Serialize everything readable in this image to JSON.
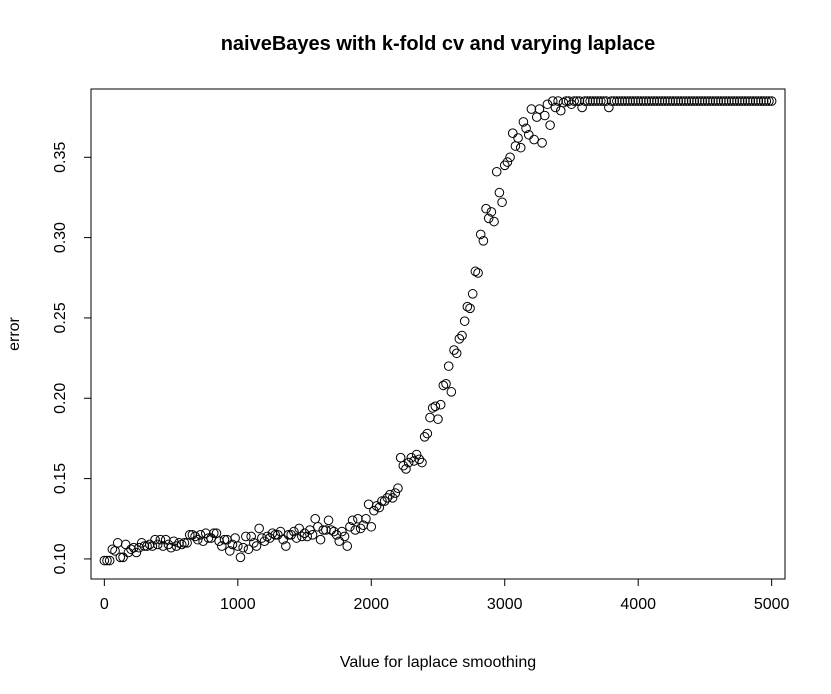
{
  "chart_data": {
    "type": "scatter",
    "title": "naiveBayes with k-fold cv and varying laplace",
    "xlabel": "Value for laplace smoothing",
    "ylabel": "error",
    "xlim": [
      -100,
      5100
    ],
    "ylim": [
      0.0875,
      0.3925
    ],
    "xticks": [
      0,
      1000,
      2000,
      3000,
      4000,
      5000
    ],
    "xtick_labels": [
      "0",
      "1000",
      "2000",
      "3000",
      "4000",
      "5000"
    ],
    "yticks": [
      0.1,
      0.15,
      0.2,
      0.25,
      0.3,
      0.35
    ],
    "ytick_labels": [
      "0.10",
      "0.15",
      "0.20",
      "0.25",
      "0.30",
      "0.35"
    ],
    "grid": false,
    "marker": "open-circle",
    "x_start": 0,
    "x_step": 20,
    "values": [
      0.099,
      0.099,
      0.099,
      0.106,
      0.105,
      0.11,
      0.101,
      0.101,
      0.109,
      0.104,
      0.106,
      0.107,
      0.104,
      0.107,
      0.11,
      0.108,
      0.108,
      0.109,
      0.108,
      0.112,
      0.109,
      0.112,
      0.108,
      0.112,
      0.109,
      0.107,
      0.111,
      0.108,
      0.11,
      0.109,
      0.11,
      0.11,
      0.115,
      0.115,
      0.114,
      0.112,
      0.115,
      0.111,
      0.116,
      0.113,
      0.113,
      0.116,
      0.116,
      0.111,
      0.108,
      0.112,
      0.112,
      0.105,
      0.109,
      0.113,
      0.108,
      0.101,
      0.107,
      0.114,
      0.106,
      0.114,
      0.11,
      0.108,
      0.119,
      0.113,
      0.111,
      0.114,
      0.113,
      0.116,
      0.115,
      0.115,
      0.117,
      0.112,
      0.108,
      0.115,
      0.115,
      0.117,
      0.113,
      0.119,
      0.114,
      0.116,
      0.114,
      0.118,
      0.115,
      0.125,
      0.12,
      0.112,
      0.118,
      0.118,
      0.124,
      0.118,
      0.117,
      0.115,
      0.111,
      0.117,
      0.114,
      0.108,
      0.12,
      0.124,
      0.118,
      0.125,
      0.119,
      0.121,
      0.125,
      0.134,
      0.12,
      0.13,
      0.133,
      0.132,
      0.136,
      0.136,
      0.138,
      0.14,
      0.138,
      0.141,
      0.144,
      0.163,
      0.158,
      0.156,
      0.16,
      0.163,
      0.161,
      0.165,
      0.162,
      0.16,
      0.176,
      0.178,
      0.188,
      0.194,
      0.195,
      0.187,
      0.196,
      0.208,
      0.209,
      0.22,
      0.204,
      0.23,
      0.228,
      0.237,
      0.239,
      0.248,
      0.257,
      0.256,
      0.265,
      0.279,
      0.278,
      0.302,
      0.298,
      0.318,
      0.312,
      0.316,
      0.31,
      0.341,
      0.328,
      0.322,
      0.345,
      0.347,
      0.35,
      0.365,
      0.357,
      0.362,
      0.356,
      0.372,
      0.368,
      0.364,
      0.38,
      0.361,
      0.375,
      0.38,
      0.359,
      0.376,
      0.383,
      0.37,
      0.385,
      0.381,
      0.385,
      0.379,
      0.384,
      0.385,
      0.385,
      0.383,
      0.385,
      0.385,
      0.385,
      0.381,
      0.385,
      0.385,
      0.385,
      0.385,
      0.385,
      0.385,
      0.385,
      0.385,
      0.385,
      0.381,
      0.385,
      0.385,
      0.385,
      0.385,
      0.385,
      0.385,
      0.385,
      0.385,
      0.385,
      0.385,
      0.385,
      0.385,
      0.385,
      0.385,
      0.385,
      0.385,
      0.385,
      0.385,
      0.385,
      0.385,
      0.385,
      0.385,
      0.385,
      0.385,
      0.385,
      0.385,
      0.385,
      0.385,
      0.385,
      0.385,
      0.385,
      0.385,
      0.385,
      0.385,
      0.385,
      0.385,
      0.385,
      0.385,
      0.385,
      0.385,
      0.385,
      0.385,
      0.385,
      0.385,
      0.385,
      0.385,
      0.385,
      0.385,
      0.385,
      0.385,
      0.385,
      0.385,
      0.385,
      0.385,
      0.385,
      0.385,
      0.385,
      0.385,
      0.385,
      0.385,
      0.385
    ]
  }
}
